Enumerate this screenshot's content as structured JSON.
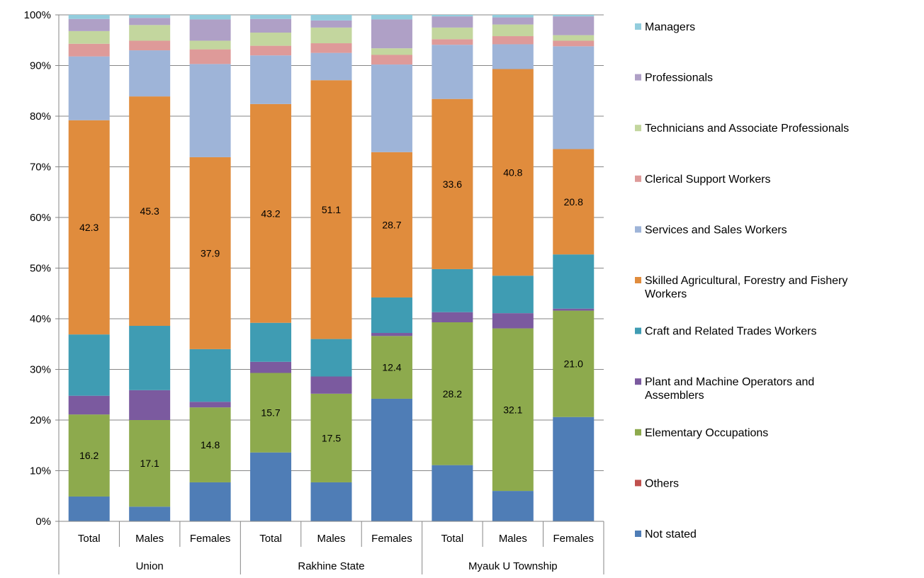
{
  "chart_data": {
    "type": "bar",
    "stacked": true,
    "percent_stacked": true,
    "ylim": [
      0,
      100
    ],
    "yticks": [
      "0%",
      "10%",
      "20%",
      "30%",
      "40%",
      "50%",
      "60%",
      "70%",
      "80%",
      "90%",
      "100%"
    ],
    "groups": [
      {
        "name": "Union",
        "categories": [
          "Total",
          "Males",
          "Females"
        ]
      },
      {
        "name": "Rakhine State",
        "categories": [
          "Total",
          "Males",
          "Females"
        ]
      },
      {
        "name": "Myauk U Township",
        "categories": [
          "Total",
          "Males",
          "Females"
        ]
      }
    ],
    "series": [
      {
        "name": "Not stated",
        "color": "#4F7DB6",
        "values": [
          4.9,
          2.9,
          7.7,
          13.6,
          7.7,
          24.2,
          11.1,
          6.0,
          20.6
        ],
        "labels": [
          null,
          null,
          null,
          null,
          null,
          null,
          null,
          null,
          null
        ]
      },
      {
        "name": "Others",
        "color": "#C0504D",
        "values": [
          0,
          0,
          0,
          0,
          0,
          0,
          0,
          0,
          0
        ],
        "labels": [
          null,
          null,
          null,
          null,
          null,
          null,
          null,
          null,
          null
        ]
      },
      {
        "name": "Elementary Occupations",
        "color": "#8DAA4D",
        "values": [
          16.2,
          17.1,
          14.8,
          15.7,
          17.5,
          12.4,
          28.2,
          32.1,
          21.0
        ],
        "labels": [
          "16.2",
          "17.1",
          "14.8",
          "15.7",
          "17.5",
          "12.4",
          "28.2",
          "32.1",
          "21.0"
        ]
      },
      {
        "name": "Plant and Machine Operators and Assemblers",
        "color": "#7B5A9F",
        "values": [
          3.7,
          5.9,
          1.1,
          2.2,
          3.4,
          0.6,
          2.0,
          3.0,
          0.4
        ],
        "labels": [
          null,
          null,
          null,
          null,
          null,
          null,
          null,
          null,
          null
        ]
      },
      {
        "name": "Craft and Related Trades Workers",
        "color": "#3F9CB3",
        "values": [
          12.1,
          12.7,
          10.4,
          7.7,
          7.4,
          7.0,
          8.5,
          7.4,
          10.7
        ],
        "labels": [
          null,
          null,
          null,
          null,
          null,
          null,
          null,
          null,
          null
        ]
      },
      {
        "name": "Skilled Agricultural, Forestry and Fishery Workers",
        "color": "#E08C3D",
        "values": [
          42.3,
          45.3,
          37.9,
          43.2,
          51.1,
          28.7,
          33.6,
          40.8,
          20.8
        ],
        "labels": [
          "42.3",
          "45.3",
          "37.9",
          "43.2",
          "51.1",
          "28.7",
          "33.6",
          "40.8",
          "20.8"
        ]
      },
      {
        "name": "Services and Sales Workers",
        "color": "#9EB4D8",
        "values": [
          12.6,
          9.1,
          18.4,
          9.6,
          5.4,
          17.3,
          10.7,
          4.9,
          20.3
        ],
        "labels": [
          null,
          null,
          null,
          null,
          null,
          null,
          null,
          null,
          null
        ]
      },
      {
        "name": "Clerical Support Workers",
        "color": "#DE9A99",
        "values": [
          2.5,
          1.9,
          2.9,
          1.9,
          1.9,
          1.9,
          1.1,
          1.6,
          1.1
        ],
        "labels": [
          null,
          null,
          null,
          null,
          null,
          null,
          null,
          null,
          null
        ]
      },
      {
        "name": "Technicians and Associate Professionals",
        "color": "#C3D69E",
        "values": [
          2.5,
          3.1,
          1.7,
          2.6,
          3.1,
          1.3,
          2.3,
          2.3,
          1.1
        ],
        "labels": [
          null,
          null,
          null,
          null,
          null,
          null,
          null,
          null,
          null
        ]
      },
      {
        "name": "Professionals",
        "color": "#AFA0C6",
        "values": [
          2.4,
          1.4,
          4.2,
          2.7,
          1.4,
          5.7,
          2.2,
          1.4,
          3.7
        ],
        "labels": [
          null,
          null,
          null,
          null,
          null,
          null,
          null,
          null,
          null
        ]
      },
      {
        "name": "Managers",
        "color": "#93CDDD",
        "values": [
          0.8,
          0.6,
          0.9,
          0.8,
          1.1,
          0.9,
          0.3,
          0.5,
          0.3
        ],
        "labels": [
          null,
          null,
          null,
          null,
          null,
          null,
          null,
          null,
          null
        ]
      }
    ],
    "legend": {
      "placement": "right",
      "items": [
        {
          "name": "Managers",
          "color": "#93CDDD",
          "lines": [
            "Managers"
          ]
        },
        {
          "name": "Professionals",
          "color": "#AFA0C6",
          "lines": [
            "Professionals"
          ]
        },
        {
          "name": "Technicians and Associate Professionals",
          "color": "#C3D69E",
          "lines": [
            "Technicians and Associate Professionals"
          ]
        },
        {
          "name": "Clerical Support Workers",
          "color": "#DE9A99",
          "lines": [
            "Clerical Support Workers"
          ]
        },
        {
          "name": "Services and Sales Workers",
          "color": "#9EB4D8",
          "lines": [
            "Services and Sales Workers"
          ]
        },
        {
          "name": "Skilled Agricultural, Forestry and Fishery Workers",
          "color": "#E08C3D",
          "lines": [
            "Skilled Agricultural, Forestry and Fishery",
            "Workers"
          ]
        },
        {
          "name": "Craft and Related Trades Workers",
          "color": "#3F9CB3",
          "lines": [
            "Craft and Related Trades Workers"
          ]
        },
        {
          "name": "Plant and Machine Operators and Assemblers",
          "color": "#7B5A9F",
          "lines": [
            "Plant and Machine Operators and",
            "Assemblers"
          ]
        },
        {
          "name": "Elementary Occupations",
          "color": "#8DAA4D",
          "lines": [
            "Elementary Occupations"
          ]
        },
        {
          "name": "Others",
          "color": "#C0504D",
          "lines": [
            "Others"
          ]
        },
        {
          "name": "Not stated",
          "color": "#4F7DB6",
          "lines": [
            "Not stated"
          ]
        }
      ]
    }
  }
}
